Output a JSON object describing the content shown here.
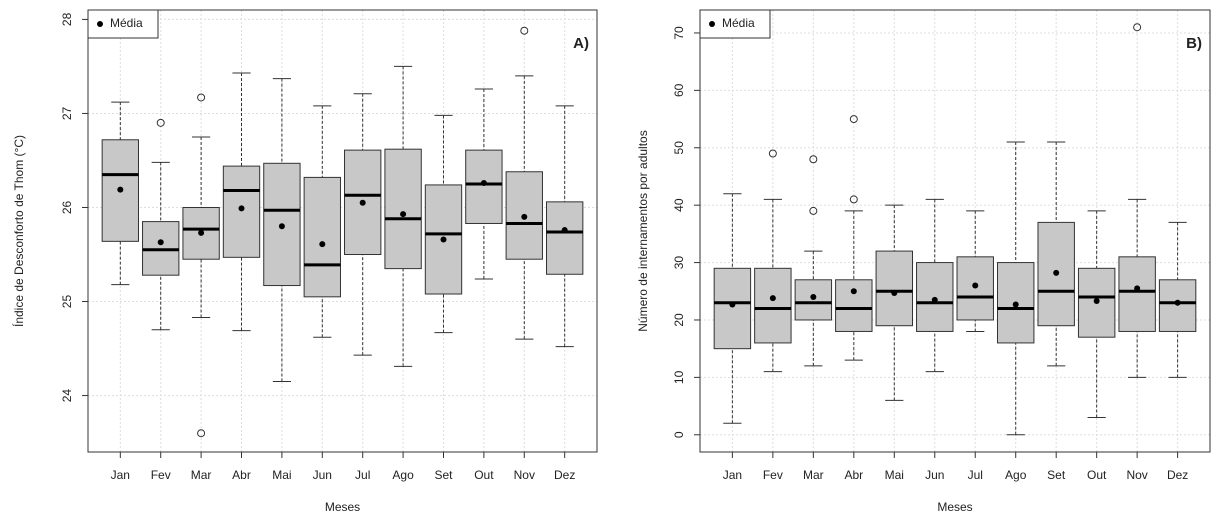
{
  "chart_data": [
    {
      "type": "box",
      "panel_label": "A)",
      "y_label": "Índice de Desconforto de Thom (°C)",
      "x_label": "Meses",
      "legend_label": "Média",
      "legend_position": "top-left",
      "grid": true,
      "color": "#c8c8c8",
      "mean_color": "#000000",
      "categories": [
        "Jan",
        "Fev",
        "Mar",
        "Abr",
        "Mai",
        "Jun",
        "Jul",
        "Ago",
        "Set",
        "Out",
        "Nov",
        "Dez"
      ],
      "ylim": [
        23.4,
        28.1
      ],
      "yticks": [
        24,
        25,
        26,
        27,
        28
      ],
      "boxes": [
        {
          "whislo": 25.18,
          "q1": 25.64,
          "med": 26.35,
          "q3": 26.72,
          "whishi": 27.12,
          "mean": 26.19,
          "outliers": []
        },
        {
          "whislo": 24.7,
          "q1": 25.28,
          "med": 25.55,
          "q3": 25.85,
          "whishi": 26.48,
          "mean": 25.63,
          "outliers": [
            26.9
          ]
        },
        {
          "whislo": 24.83,
          "q1": 25.45,
          "med": 25.77,
          "q3": 26.0,
          "whishi": 26.75,
          "mean": 25.73,
          "outliers": [
            27.17,
            23.6
          ]
        },
        {
          "whislo": 24.69,
          "q1": 25.47,
          "med": 26.18,
          "q3": 26.44,
          "whishi": 27.43,
          "mean": 25.99,
          "outliers": []
        },
        {
          "whislo": 24.15,
          "q1": 25.17,
          "med": 25.97,
          "q3": 26.47,
          "whishi": 27.37,
          "mean": 25.8,
          "outliers": []
        },
        {
          "whislo": 24.62,
          "q1": 25.05,
          "med": 25.39,
          "q3": 26.32,
          "whishi": 27.08,
          "mean": 25.61,
          "outliers": []
        },
        {
          "whislo": 24.43,
          "q1": 25.5,
          "med": 26.13,
          "q3": 26.61,
          "whishi": 27.21,
          "mean": 26.05,
          "outliers": []
        },
        {
          "whislo": 24.31,
          "q1": 25.35,
          "med": 25.88,
          "q3": 26.62,
          "whishi": 27.5,
          "mean": 25.93,
          "outliers": []
        },
        {
          "whislo": 24.67,
          "q1": 25.08,
          "med": 25.72,
          "q3": 26.24,
          "whishi": 26.98,
          "mean": 25.66,
          "outliers": []
        },
        {
          "whislo": 25.24,
          "q1": 25.83,
          "med": 26.25,
          "q3": 26.61,
          "whishi": 27.26,
          "mean": 26.26,
          "outliers": []
        },
        {
          "whislo": 24.6,
          "q1": 25.45,
          "med": 25.83,
          "q3": 26.38,
          "whishi": 27.4,
          "mean": 25.9,
          "outliers": [
            27.88
          ]
        },
        {
          "whislo": 24.52,
          "q1": 25.29,
          "med": 25.74,
          "q3": 26.06,
          "whishi": 27.08,
          "mean": 25.76,
          "outliers": []
        }
      ]
    },
    {
      "type": "box",
      "panel_label": "B)",
      "y_label": "Número de internamentos por adultos",
      "x_label": "Meses",
      "legend_label": "Média",
      "legend_position": "top-left",
      "grid": true,
      "color": "#c8c8c8",
      "mean_color": "#000000",
      "categories": [
        "Jan",
        "Fev",
        "Mar",
        "Abr",
        "Mai",
        "Jun",
        "Jul",
        "Ago",
        "Set",
        "Out",
        "Nov",
        "Dez"
      ],
      "ylim": [
        -3,
        74
      ],
      "yticks": [
        0,
        10,
        20,
        30,
        40,
        50,
        60,
        70
      ],
      "boxes": [
        {
          "whislo": 2,
          "q1": 15,
          "med": 23,
          "q3": 29,
          "whishi": 42,
          "mean": 22.7,
          "outliers": []
        },
        {
          "whislo": 11,
          "q1": 16,
          "med": 22,
          "q3": 29,
          "whishi": 41,
          "mean": 23.8,
          "outliers": [
            49
          ]
        },
        {
          "whislo": 12,
          "q1": 20,
          "med": 23,
          "q3": 27,
          "whishi": 32,
          "mean": 24,
          "outliers": [
            48,
            39
          ]
        },
        {
          "whislo": 13,
          "q1": 18,
          "med": 22,
          "q3": 27,
          "whishi": 39,
          "mean": 25,
          "outliers": [
            55,
            41
          ]
        },
        {
          "whislo": 6,
          "q1": 19,
          "med": 25,
          "q3": 32,
          "whishi": 40,
          "mean": 24.7,
          "outliers": []
        },
        {
          "whislo": 11,
          "q1": 18,
          "med": 23,
          "q3": 30,
          "whishi": 41,
          "mean": 23.5,
          "outliers": []
        },
        {
          "whislo": 18,
          "q1": 20,
          "med": 24,
          "q3": 31,
          "whishi": 39,
          "mean": 26,
          "outliers": []
        },
        {
          "whislo": 0,
          "q1": 16,
          "med": 22,
          "q3": 30,
          "whishi": 51,
          "mean": 22.7,
          "outliers": []
        },
        {
          "whislo": 12,
          "q1": 19,
          "med": 25,
          "q3": 37,
          "whishi": 51,
          "mean": 28.2,
          "outliers": []
        },
        {
          "whislo": 3,
          "q1": 17,
          "med": 24,
          "q3": 29,
          "whishi": 39,
          "mean": 23.3,
          "outliers": []
        },
        {
          "whislo": 10,
          "q1": 18,
          "med": 25,
          "q3": 31,
          "whishi": 41,
          "mean": 25.5,
          "outliers": [
            71
          ]
        },
        {
          "whislo": 10,
          "q1": 18,
          "med": 23,
          "q3": 27,
          "whishi": 37,
          "mean": 23,
          "outliers": []
        }
      ]
    }
  ]
}
